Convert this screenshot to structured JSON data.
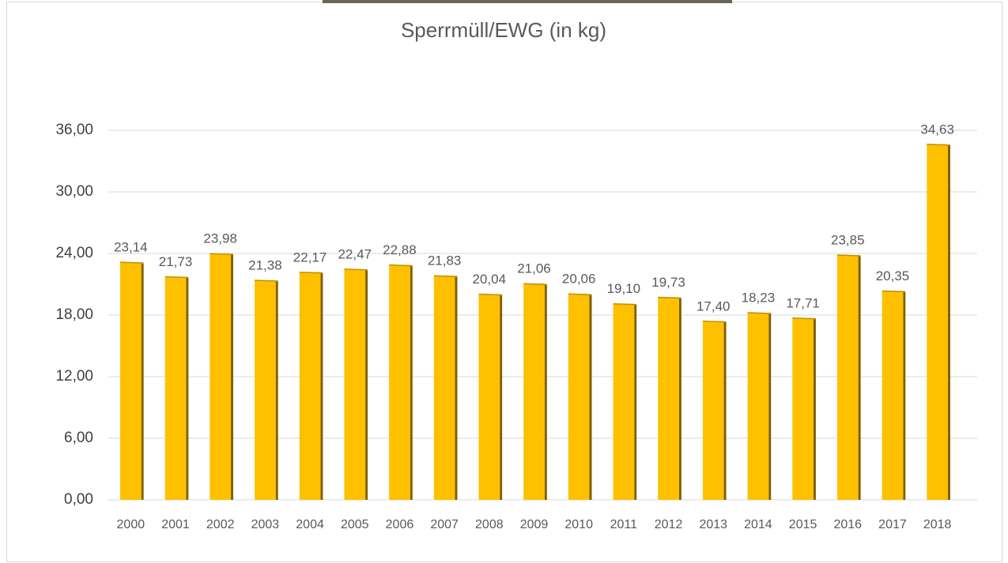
{
  "chart_data": {
    "type": "bar",
    "title": "Sperrmüll/EWG (in kg)",
    "categories": [
      "2000",
      "2001",
      "2002",
      "2003",
      "2004",
      "2005",
      "2006",
      "2007",
      "2008",
      "2009",
      "2010",
      "2011",
      "2012",
      "2013",
      "2014",
      "2015",
      "2016",
      "2017",
      "2018"
    ],
    "values": [
      23.14,
      21.73,
      23.98,
      21.38,
      22.17,
      22.47,
      22.88,
      21.83,
      20.04,
      21.06,
      20.06,
      19.1,
      19.73,
      17.4,
      18.23,
      17.71,
      23.85,
      20.35,
      34.63
    ],
    "value_labels": [
      "23,14",
      "21,73",
      "23,98",
      "21,38",
      "22,17",
      "22,47",
      "22,88",
      "21,83",
      "20,04",
      "21,06",
      "20,06",
      "19,10",
      "19,73",
      "17,40",
      "18,23",
      "17,71",
      "23,85",
      "20,35",
      "34,63"
    ],
    "color": "#ffc000",
    "ylim": [
      0,
      36
    ],
    "yticks": [
      {
        "value": 0,
        "label": "0,00"
      },
      {
        "value": 6,
        "label": "6,00"
      },
      {
        "value": 12,
        "label": "12,00"
      },
      {
        "value": 18,
        "label": "18,00"
      },
      {
        "value": 24,
        "label": "24,00"
      },
      {
        "value": 30,
        "label": "30,00"
      },
      {
        "value": 36,
        "label": "36,00"
      }
    ],
    "grid": true
  }
}
